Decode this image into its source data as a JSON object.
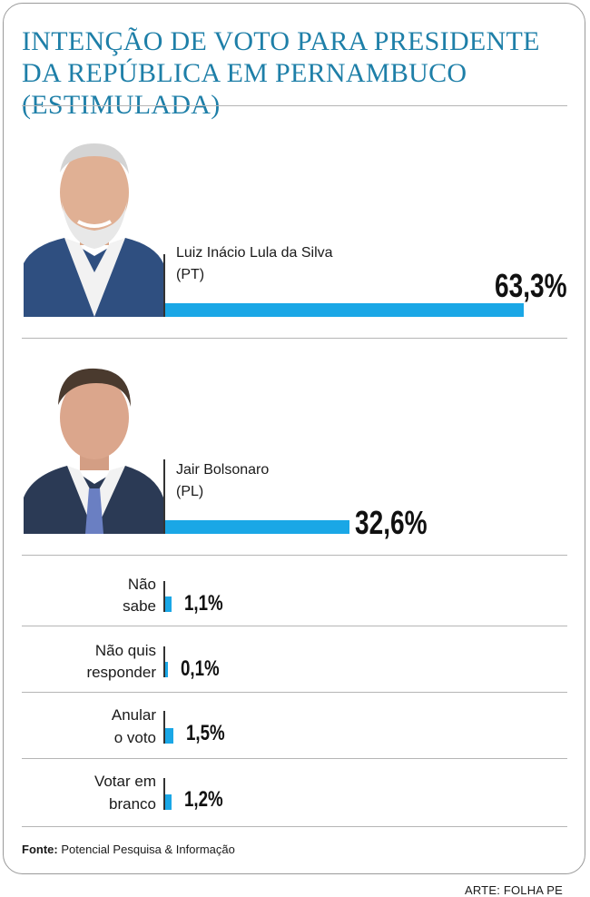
{
  "chart_data": {
    "type": "bar",
    "orientation": "horizontal",
    "title": "INTENÇÃO DE VOTO PARA PRESIDENTE DA REPÚBLICA EM PERNAMBUCO (ESTIMULADA)",
    "categories": [
      "Luiz Inácio Lula da Silva (PT)",
      "Jair Bolsonaro (PL)",
      "Não sabe",
      "Não quis responder",
      "Anular o voto",
      "Votar em branco"
    ],
    "values": [
      63.3,
      32.6,
      1.1,
      0.1,
      1.5,
      1.2
    ],
    "value_labels": [
      "63,3%",
      "32,6%",
      "1,1%",
      "0,1%",
      "1,5%",
      "1,2%"
    ],
    "xlim": [
      0,
      63.3
    ],
    "grid": false,
    "bar_color": "#1aa7e6"
  },
  "candidates": [
    {
      "name": "Luiz Inácio Lula da Silva",
      "party": "(PT)",
      "value": 63.3,
      "pct_label": "63,3%"
    },
    {
      "name": "Jair Bolsonaro",
      "party": "(PL)",
      "value": 32.6,
      "pct_label": "32,6%"
    }
  ],
  "options": [
    {
      "line1": "Não",
      "line2": "sabe",
      "value": 1.1,
      "pct_label": "1,1%"
    },
    {
      "line1": "Não quis",
      "line2": "responder",
      "value": 0.1,
      "pct_label": "0,1%"
    },
    {
      "line1": "Anular",
      "line2": "o voto",
      "value": 1.5,
      "pct_label": "1,5%"
    },
    {
      "line1": "Votar em",
      "line2": "branco",
      "value": 1.2,
      "pct_label": "1,2%"
    }
  ],
  "source": {
    "label": "Fonte:",
    "text": "Potencial Pesquisa & Informação"
  },
  "credit": "ARTE: FOLHA PE",
  "colors": {
    "title": "#1e7fa8",
    "bar": "#1aa7e6",
    "divider": "#b5b5b5"
  }
}
